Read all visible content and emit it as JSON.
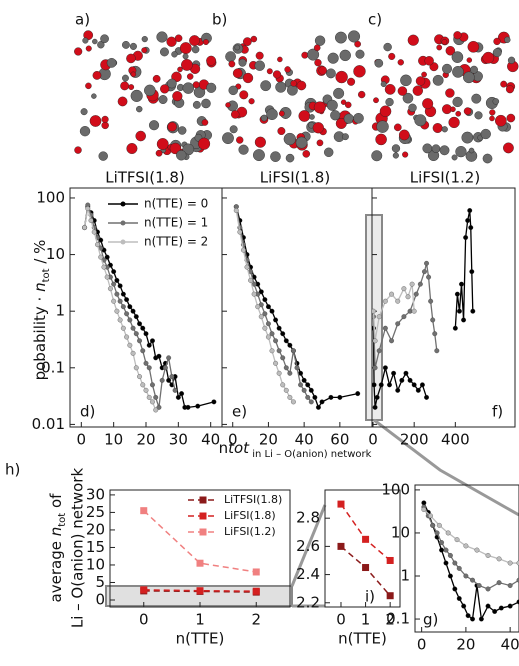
{
  "images": [
    {
      "label": "a)",
      "caption": "LiTFSI(1.8)"
    },
    {
      "label": "b)",
      "caption": "LiFSI(1.8)"
    },
    {
      "label": "c)",
      "caption": "LiFSI(1.2)"
    }
  ],
  "ylabel_parts": [
    "pobability · ",
    "n",
    "tot",
    " / %"
  ],
  "xlabel_parts": [
    "n",
    "tot",
    " in Li – O(anion) network"
  ],
  "h_ylabel_parts": [
    "average ",
    "n",
    "tot",
    " of"
  ],
  "h_ylabel_line2": "Li – O(anion) network",
  "chart_data": [
    {
      "type": "line",
      "panel_label": "d)",
      "log_y": true,
      "ylim": [
        0.009,
        150
      ],
      "yticks": [
        0.01,
        0.1,
        1,
        10,
        100
      ],
      "xlim": [
        -3.5,
        43.5
      ],
      "xticks": [
        0,
        10,
        20,
        30,
        40
      ],
      "legend": "upper right",
      "series": [
        {
          "name": "n(TTE) = 0",
          "color": "#000000",
          "x": [
            1,
            2,
            3,
            4,
            5,
            6,
            7,
            8,
            9,
            10,
            11,
            12,
            13,
            14,
            15,
            16,
            17,
            18,
            19,
            20,
            21,
            22,
            23,
            24,
            25,
            26,
            27,
            28,
            29,
            30,
            31,
            32,
            33,
            36,
            41
          ],
          "values": [
            30,
            70,
            55,
            40,
            25,
            18,
            12,
            9,
            6.5,
            5,
            3.5,
            2.8,
            2,
            1.6,
            1.2,
            1,
            0.8,
            0.6,
            0.5,
            0.4,
            0.25,
            0.3,
            0.15,
            0.16,
            0.1,
            0.12,
            0.06,
            0.05,
            0.07,
            0.03,
            0.035,
            0.02,
            0.02,
            0.021,
            0.025
          ]
        },
        {
          "name": "n(TTE) = 1",
          "color": "#707070",
          "x": [
            1,
            2,
            3,
            4,
            5,
            6,
            7,
            8,
            9,
            10,
            11,
            12,
            13,
            14,
            15,
            16,
            17,
            18,
            19,
            20,
            21,
            22,
            23,
            24,
            25,
            26,
            27,
            28,
            29
          ],
          "values": [
            30,
            75,
            50,
            30,
            20,
            13,
            8,
            6,
            4,
            3,
            2,
            1.5,
            1.2,
            0.9,
            0.7,
            0.5,
            0.4,
            0.3,
            0.2,
            0.12,
            0.1,
            0.05,
            0.03,
            0.02,
            0.06,
            0.1,
            0.15,
            0.07,
            0.04
          ]
        },
        {
          "name": "n(TTE) = 2",
          "color": "#bdbdbd",
          "x": [
            1,
            2,
            3,
            4,
            5,
            6,
            7,
            8,
            9,
            10,
            11,
            12,
            13,
            14,
            15,
            16,
            17,
            18,
            19,
            20,
            21,
            22,
            23
          ],
          "values": [
            30,
            65,
            40,
            25,
            15,
            9,
            6,
            4,
            2.5,
            1.5,
            1,
            0.7,
            0.5,
            0.35,
            0.25,
            0.18,
            0.1,
            0.07,
            0.05,
            0.04,
            0.03,
            0.025,
            0.018
          ]
        }
      ]
    },
    {
      "type": "line",
      "panel_label": "e)",
      "log_y": true,
      "ytick_labels": false,
      "ylim": [
        0.009,
        150
      ],
      "yticks": [
        0.01,
        0.1,
        1,
        10,
        100
      ],
      "xlim": [
        -6,
        78
      ],
      "xticks": [
        0,
        20,
        40,
        60
      ],
      "series": [
        {
          "color": "#000000",
          "x": [
            2,
            4,
            6,
            8,
            10,
            12,
            14,
            16,
            18,
            20,
            22,
            24,
            26,
            28,
            30,
            32,
            34,
            36,
            38,
            40,
            42,
            44,
            46,
            48,
            50,
            55,
            60,
            70
          ],
          "values": [
            70,
            40,
            20,
            10,
            6,
            4,
            3,
            2.2,
            1.6,
            1.2,
            1,
            0.7,
            0.5,
            0.4,
            0.3,
            0.25,
            0.2,
            0.12,
            0.08,
            0.06,
            0.05,
            0.04,
            0.03,
            0.02,
            0.025,
            0.03,
            0.03,
            0.035
          ]
        },
        {
          "color": "#707070",
          "x": [
            2,
            4,
            6,
            8,
            10,
            12,
            14,
            16,
            18,
            20,
            22,
            24,
            26,
            28,
            30,
            32,
            34,
            36,
            38,
            40,
            42,
            44
          ],
          "values": [
            70,
            30,
            15,
            8,
            5,
            3,
            2,
            1.3,
            0.9,
            0.6,
            0.4,
            0.3,
            0.2,
            0.15,
            0.1,
            0.08,
            0.2,
            0.1,
            0.05,
            0.04,
            0.03,
            0.025
          ]
        },
        {
          "color": "#bdbdbd",
          "x": [
            2,
            4,
            6,
            8,
            10,
            12,
            14,
            16,
            18,
            20,
            22,
            24,
            26,
            28,
            30,
            32,
            34
          ],
          "values": [
            60,
            25,
            12,
            6,
            3.5,
            2,
            1.2,
            0.8,
            0.5,
            0.35,
            0.2,
            0.12,
            0.08,
            0.05,
            0.04,
            0.03,
            0.025
          ]
        }
      ]
    },
    {
      "type": "line",
      "panel_label": "f)",
      "log_y": true,
      "ytick_labels": false,
      "ylim": [
        0.009,
        150
      ],
      "yticks": [
        0.01,
        0.1,
        1,
        10,
        100
      ],
      "xlim": [
        -5,
        690
      ],
      "xticks": [
        0,
        200,
        400
      ],
      "series": [
        {
          "color": "#000000",
          "x": [
            2,
            5,
            10,
            20,
            40,
            60,
            80,
            100,
            120,
            140,
            160,
            180,
            200,
            220,
            240,
            260,
            330,
            400,
            410,
            420,
            430,
            440,
            450,
            460,
            470,
            475,
            480,
            485
          ],
          "values": [
            0.5,
            0.05,
            0.02,
            0.03,
            0.05,
            0.1,
            0.05,
            0.08,
            0.04,
            0.06,
            0.08,
            0.06,
            0.05,
            0.04,
            0.05,
            0.03,
            null,
            0.5,
            2,
            1,
            3,
            0.7,
            20,
            40,
            60,
            30,
            5,
            1
          ]
        },
        {
          "color": "#707070",
          "x": [
            2,
            10,
            30,
            60,
            90,
            120,
            150,
            180,
            210,
            230,
            250,
            260,
            270,
            280,
            290,
            300,
            310
          ],
          "values": [
            0.8,
            0.1,
            0.2,
            0.5,
            0.3,
            0.6,
            0.8,
            1,
            2,
            3,
            5,
            7,
            4,
            1.5,
            0.7,
            0.4,
            0.2
          ]
        },
        {
          "color": "#bdbdbd",
          "x": [
            2,
            10,
            30,
            60,
            90,
            120,
            150,
            170,
            190,
            200
          ],
          "values": [
            1,
            0.3,
            0.8,
            1.5,
            2,
            1.5,
            2.5,
            1.8,
            3,
            1
          ]
        }
      ]
    },
    {
      "type": "line",
      "panel_label": "g)",
      "log_y": true,
      "ylim": [
        0.05,
        130
      ],
      "yticks": [
        0.1,
        1,
        10,
        100
      ],
      "xlim": [
        -3,
        44
      ],
      "xticks": [
        0,
        20,
        40
      ],
      "series": [
        {
          "color": "#000000",
          "x": [
            1,
            3,
            5,
            7,
            9,
            11,
            13,
            15,
            17,
            19,
            21,
            23,
            25,
            27,
            30,
            33,
            36,
            40,
            44
          ],
          "values": [
            50,
            30,
            15,
            8,
            4,
            2,
            1,
            0.5,
            0.3,
            0.2,
            0.12,
            0.1,
            0.6,
            0.1,
            0.2,
            0.15,
            0.18,
            0.2,
            0.25
          ]
        },
        {
          "color": "#707070",
          "x": [
            1,
            3,
            5,
            7,
            9,
            11,
            13,
            15,
            17,
            20,
            23,
            26,
            30,
            35,
            40,
            44
          ],
          "values": [
            40,
            25,
            15,
            10,
            6,
            4,
            3,
            2,
            1.5,
            1,
            0.8,
            0.6,
            0.5,
            0.7,
            0.6,
            0.8
          ]
        },
        {
          "color": "#bdbdbd",
          "x": [
            1,
            4,
            8,
            12,
            16,
            20,
            25,
            30,
            35,
            40,
            44
          ],
          "values": [
            35,
            25,
            15,
            10,
            7,
            5,
            4,
            3,
            2.5,
            2,
            2
          ]
        }
      ]
    },
    {
      "type": "dashed",
      "panel_label": "h)",
      "xlabel": "n(TTE)",
      "ylim": [
        -2,
        31.4
      ],
      "yticks": [
        0,
        5,
        10,
        15,
        20,
        25,
        30
      ],
      "xlim": [
        -0.6,
        2.6
      ],
      "xticks": [
        0,
        1,
        2
      ],
      "legend": "upper right",
      "series": [
        {
          "name": "LiTFSI(1.8)",
          "color": "#8b1a1a",
          "x": [
            0,
            1,
            2
          ],
          "values": [
            2.6,
            2.45,
            2.25
          ]
        },
        {
          "name": "LiFSI(1.8)",
          "color": "#d42020",
          "x": [
            0,
            1,
            2
          ],
          "values": [
            2.9,
            2.65,
            2.5
          ]
        },
        {
          "name": "LiFSI(1.2)",
          "color": "#f08080",
          "x": [
            0,
            1,
            2
          ],
          "values": [
            25.5,
            10.5,
            8
          ]
        }
      ]
    },
    {
      "type": "dashed",
      "panel_label": "i)",
      "xlabel": "n(TTE)",
      "ylim": [
        2.17,
        3.0
      ],
      "yticks": [
        2.2,
        2.4,
        2.6,
        2.8
      ],
      "xlim": [
        -0.65,
        2.4
      ],
      "xticks": [
        0,
        1,
        2
      ],
      "series": [
        {
          "color": "#8b1a1a",
          "x": [
            0,
            1,
            2
          ],
          "values": [
            2.6,
            2.45,
            2.25
          ]
        },
        {
          "color": "#d42020",
          "x": [
            0,
            1,
            2
          ],
          "values": [
            2.9,
            2.65,
            2.5
          ]
        }
      ]
    }
  ]
}
